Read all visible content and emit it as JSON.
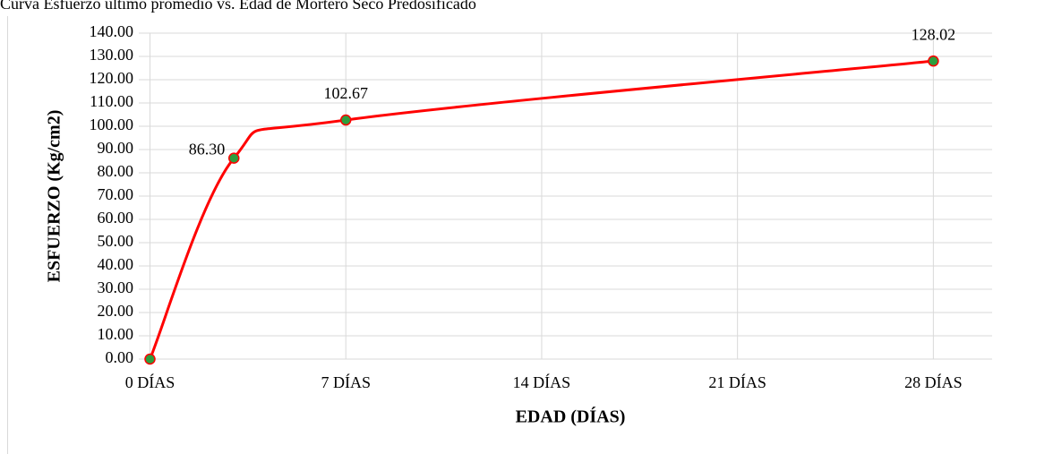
{
  "chart_data": {
    "type": "line",
    "title": "Curva Esfuerzo último promedio vs. Edad de Mortero Seco Predosificado",
    "x_label": "EDAD (DÍAS)",
    "y_label": "ESFUERZO (Kg/cm2)",
    "x": [
      0,
      3,
      7,
      28
    ],
    "series": [
      {
        "name": "Esfuerzo",
        "color": "#ff0000",
        "marker_color": "#2e9e3e",
        "values": [
          0,
          86.3,
          102.67,
          128.02
        ],
        "value_labels": [
          null,
          "86.30",
          "102.67",
          "128.02"
        ]
      }
    ],
    "xlim": [
      -0.4,
      30.1
    ],
    "xticks": [
      {
        "value": 0,
        "label": "0 DÍAS"
      },
      {
        "value": 7,
        "label": "7 DÍAS"
      },
      {
        "value": 14,
        "label": "14 DÍAS"
      },
      {
        "value": 21,
        "label": "21 DÍAS"
      },
      {
        "value": 28,
        "label": "28 DÍAS"
      }
    ],
    "ylim": [
      0,
      140
    ],
    "yticks": [
      {
        "value": 0,
        "label": "0.00"
      },
      {
        "value": 10,
        "label": "10.00"
      },
      {
        "value": 20,
        "label": "20.00"
      },
      {
        "value": 30,
        "label": "30.00"
      },
      {
        "value": 40,
        "label": "40.00"
      },
      {
        "value": 50,
        "label": "50.00"
      },
      {
        "value": 60,
        "label": "60.00"
      },
      {
        "value": 70,
        "label": "70.00"
      },
      {
        "value": 80,
        "label": "80.00"
      },
      {
        "value": 90,
        "label": "90.00"
      },
      {
        "value": 100,
        "label": "100.00"
      },
      {
        "value": 110,
        "label": "110.00"
      },
      {
        "value": 120,
        "label": "120.00"
      },
      {
        "value": 130,
        "label": "130.00"
      },
      {
        "value": 140,
        "label": "140.00"
      }
    ],
    "grid": true,
    "smooth": true
  }
}
